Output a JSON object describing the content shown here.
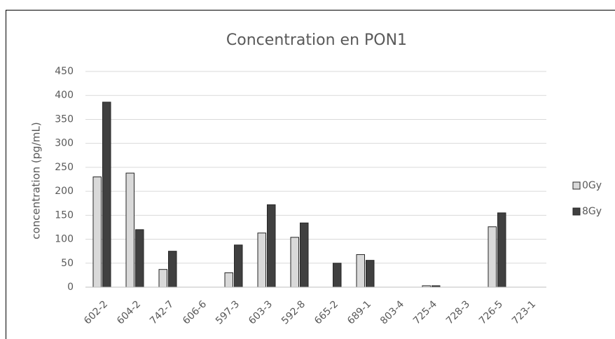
{
  "chart_data": {
    "type": "bar",
    "title": "Concentration en PON1",
    "ylabel": "concentration  (pg/mL)",
    "categories": [
      "602-2",
      "604-2",
      "742-7",
      "606-6",
      "597-3",
      "603-3",
      "592-8",
      "665-2",
      "689-1",
      "803-4",
      "725-4",
      "728-3",
      "726-5",
      "723-1"
    ],
    "series": [
      {
        "name": "0Gy",
        "color": "#d9d9d9",
        "values": [
          230,
          238,
          37,
          0,
          30,
          113,
          104,
          0,
          68,
          0,
          3,
          0,
          126,
          0
        ]
      },
      {
        "name": "8Gy",
        "color": "#404040",
        "values": [
          386,
          120,
          75,
          0,
          88,
          172,
          134,
          50,
          56,
          0,
          3,
          0,
          155,
          0
        ]
      }
    ],
    "ylim": [
      0,
      450
    ],
    "yticks": [
      0,
      50,
      100,
      150,
      200,
      250,
      300,
      350,
      400,
      450
    ],
    "grid": true,
    "legend": "right"
  }
}
